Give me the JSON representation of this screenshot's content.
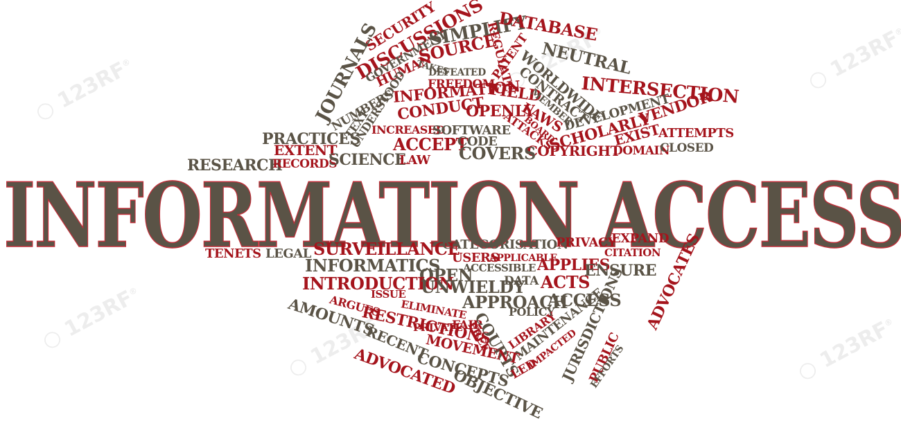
{
  "title": "INFORMATION ACCESS",
  "watermark": "123RF",
  "colors": {
    "red": "#a5141c",
    "dark": "#5a5346",
    "outline": "#c0303a"
  },
  "words": [
    "SECURITY",
    "DISCUSSIONS",
    "GOVERNMENT",
    "JOURNALS",
    "SIMPLIFY",
    "DATABASE",
    "REGULATE",
    "SOURCE",
    "HUMAN",
    "TAKES",
    "NEUTRAL",
    "WORLDWIDE",
    "PATENT",
    "DEFEATED",
    "NUMBERS",
    "FREEDOM",
    "CONTRACT",
    "INTERSECTION",
    "TEXT",
    "UNDERSTOOD",
    "INFORMATION",
    "FIELD",
    "MEMBER",
    "DEVELOPMENT",
    "CONDUCT",
    "OPENLY",
    "LAWS",
    "VENDOR",
    "PRACTICES",
    "INCREASED",
    "SOFTWARE",
    "SCHOLARLY",
    "ATTACKS",
    "BOARD",
    "EXIST",
    "ATTEMPTS",
    "EXTENT",
    "ACCEPT",
    "CODE",
    "COPYRIGHT",
    "DOMAIN",
    "CLOSED",
    "RESEARCH",
    "RECORDS",
    "SCIENCE",
    "LAW",
    "COVERS",
    "TENETS",
    "LEGAL",
    "SURVEILLANCE",
    "CATEGORISATION",
    "PRIVACY",
    "EXPAND",
    "INFORMATICS",
    "USERS",
    "APPLICABLE",
    "CITATION",
    "OPEN",
    "ACCESSIBLE",
    "APPLIES",
    "INTRODUCTION",
    "UNWIELDY",
    "DATA",
    "ACTS",
    "ENSURE",
    "ADVOCATES",
    "ISSUE",
    "ARGUES",
    "ELIMINATE",
    "APPROACH",
    "ACCESS",
    "AMOUNTS",
    "RESTRICTIONS",
    "POLICY",
    "MAINTENANCE",
    "PRIVATE",
    "FAIR",
    "COURTS",
    "LIBRARY",
    "JURISDICTIONS",
    "RECENT",
    "MOVEMENT",
    "FREE",
    "IMPACTED",
    "PUBLIC",
    "CONCEPTS",
    "LED",
    "EFFORTS",
    "ADVOCATED",
    "OBJECTIVE"
  ]
}
